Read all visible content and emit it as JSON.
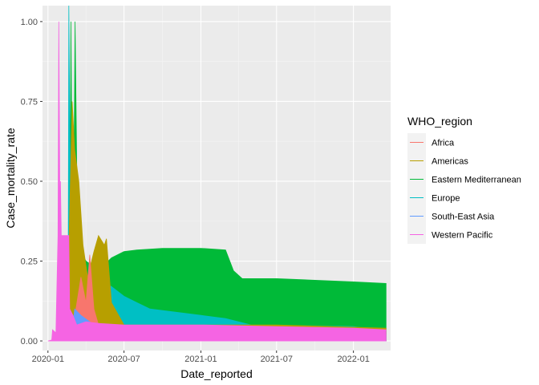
{
  "chart_data": {
    "type": "area",
    "xlabel": "Date_reported",
    "ylabel": "Case_mortality_rate",
    "x_ticks": [
      "2020-01",
      "2020-07",
      "2021-01",
      "2021-07",
      "2022-01"
    ],
    "y_ticks": [
      "0.00",
      "0.25",
      "0.50",
      "0.75",
      "1.00"
    ],
    "xlim": [
      "2019-12-19",
      "2022-03-31"
    ],
    "ylim": [
      -0.03,
      1.05
    ],
    "grid": true,
    "legend": {
      "title": "WHO_region",
      "position": "right"
    },
    "series": [
      {
        "name": "Africa",
        "color": "#F8766D",
        "points": [
          [
            "2020-02-25",
            0
          ],
          [
            "2020-03-20",
            0.2
          ],
          [
            "2020-04-01",
            0.12
          ],
          [
            "2020-04-10",
            0.27
          ],
          [
            "2020-04-20",
            0.1
          ],
          [
            "2020-05-01",
            0.05
          ],
          [
            "2020-07-01",
            0.035
          ],
          [
            "2021-01-01",
            0.03
          ],
          [
            "2022-03-20",
            0.02
          ],
          [
            "2022-03-20",
            0
          ]
        ]
      },
      {
        "name": "Americas",
        "color": "#B79F00",
        "points": [
          [
            "2020-02-15",
            0
          ],
          [
            "2020-02-28",
            0.75
          ],
          [
            "2020-03-05",
            0.6
          ],
          [
            "2020-03-15",
            0.5
          ],
          [
            "2020-03-25",
            0.3
          ],
          [
            "2020-04-05",
            0.2
          ],
          [
            "2020-04-20",
            0.28
          ],
          [
            "2020-05-01",
            0.33
          ],
          [
            "2020-05-15",
            0.3
          ],
          [
            "2020-05-20",
            0.32
          ],
          [
            "2020-06-01",
            0.12
          ],
          [
            "2020-07-01",
            0.05
          ],
          [
            "2021-01-01",
            0.05
          ],
          [
            "2021-07-01",
            0.05
          ],
          [
            "2022-03-20",
            0.04
          ],
          [
            "2022-03-20",
            0
          ]
        ]
      },
      {
        "name": "Eastern Mediterranean",
        "color": "#00BA38",
        "points": [
          [
            "2020-02-22",
            0
          ],
          [
            "2020-02-25",
            1.0
          ],
          [
            "2020-03-01",
            0.1
          ],
          [
            "2020-03-06",
            1.0
          ],
          [
            "2020-03-12",
            0.3
          ],
          [
            "2020-04-01",
            0.25
          ],
          [
            "2020-05-01",
            0.22
          ],
          [
            "2020-06-01",
            0.26
          ],
          [
            "2020-07-01",
            0.28
          ],
          [
            "2020-08-01",
            0.285
          ],
          [
            "2020-10-01",
            0.29
          ],
          [
            "2021-01-01",
            0.29
          ],
          [
            "2021-03-01",
            0.285
          ],
          [
            "2021-03-20",
            0.22
          ],
          [
            "2021-04-10",
            0.195
          ],
          [
            "2021-07-01",
            0.195
          ],
          [
            "2021-10-01",
            0.19
          ],
          [
            "2022-01-01",
            0.185
          ],
          [
            "2022-03-20",
            0.18
          ],
          [
            "2022-03-20",
            0
          ]
        ]
      },
      {
        "name": "Europe",
        "color": "#00BFC4",
        "points": [
          [
            "2020-02-18",
            0
          ],
          [
            "2020-02-20",
            1.05
          ],
          [
            "2020-02-25",
            0.3
          ],
          [
            "2020-03-10",
            0.18
          ],
          [
            "2020-04-01",
            0.19
          ],
          [
            "2020-05-01",
            0.19
          ],
          [
            "2020-06-01",
            0.17
          ],
          [
            "2020-07-01",
            0.14
          ],
          [
            "2020-08-01",
            0.12
          ],
          [
            "2020-09-01",
            0.1
          ],
          [
            "2020-11-01",
            0.09
          ],
          [
            "2021-01-01",
            0.08
          ],
          [
            "2021-03-01",
            0.07
          ],
          [
            "2021-05-01",
            0.05
          ],
          [
            "2022-01-01",
            0.045
          ],
          [
            "2022-03-20",
            0.03
          ],
          [
            "2022-03-20",
            0
          ]
        ]
      },
      {
        "name": "South-East Asia",
        "color": "#619CFF",
        "points": [
          [
            "2020-02-25",
            0
          ],
          [
            "2020-03-05",
            0.1
          ],
          [
            "2020-03-20",
            0.08
          ],
          [
            "2020-05-01",
            0.04
          ],
          [
            "2021-01-01",
            0.03
          ],
          [
            "2022-03-20",
            0.02
          ],
          [
            "2022-03-20",
            0
          ]
        ]
      },
      {
        "name": "Western Pacific",
        "color": "#F564E3",
        "points": [
          [
            "2020-01-01",
            0
          ],
          [
            "2020-01-10",
            0.003
          ],
          [
            "2020-01-12",
            0.035
          ],
          [
            "2020-01-20",
            0.025
          ],
          [
            "2020-01-25",
            0.33
          ],
          [
            "2020-01-27",
            1.0
          ],
          [
            "2020-01-30",
            0.33
          ],
          [
            "2020-01-31",
            0.5
          ],
          [
            "2020-02-02",
            0.33
          ],
          [
            "2020-02-20",
            0.33
          ],
          [
            "2020-02-22",
            0.1
          ],
          [
            "2020-03-01",
            0.08
          ],
          [
            "2020-03-10",
            0.05
          ],
          [
            "2020-04-01",
            0.06
          ],
          [
            "2020-05-01",
            0.055
          ],
          [
            "2020-07-01",
            0.05
          ],
          [
            "2021-01-01",
            0.05
          ],
          [
            "2021-07-01",
            0.045
          ],
          [
            "2022-01-01",
            0.04
          ],
          [
            "2022-03-20",
            0.035
          ],
          [
            "2022-03-20",
            0
          ]
        ]
      }
    ]
  }
}
